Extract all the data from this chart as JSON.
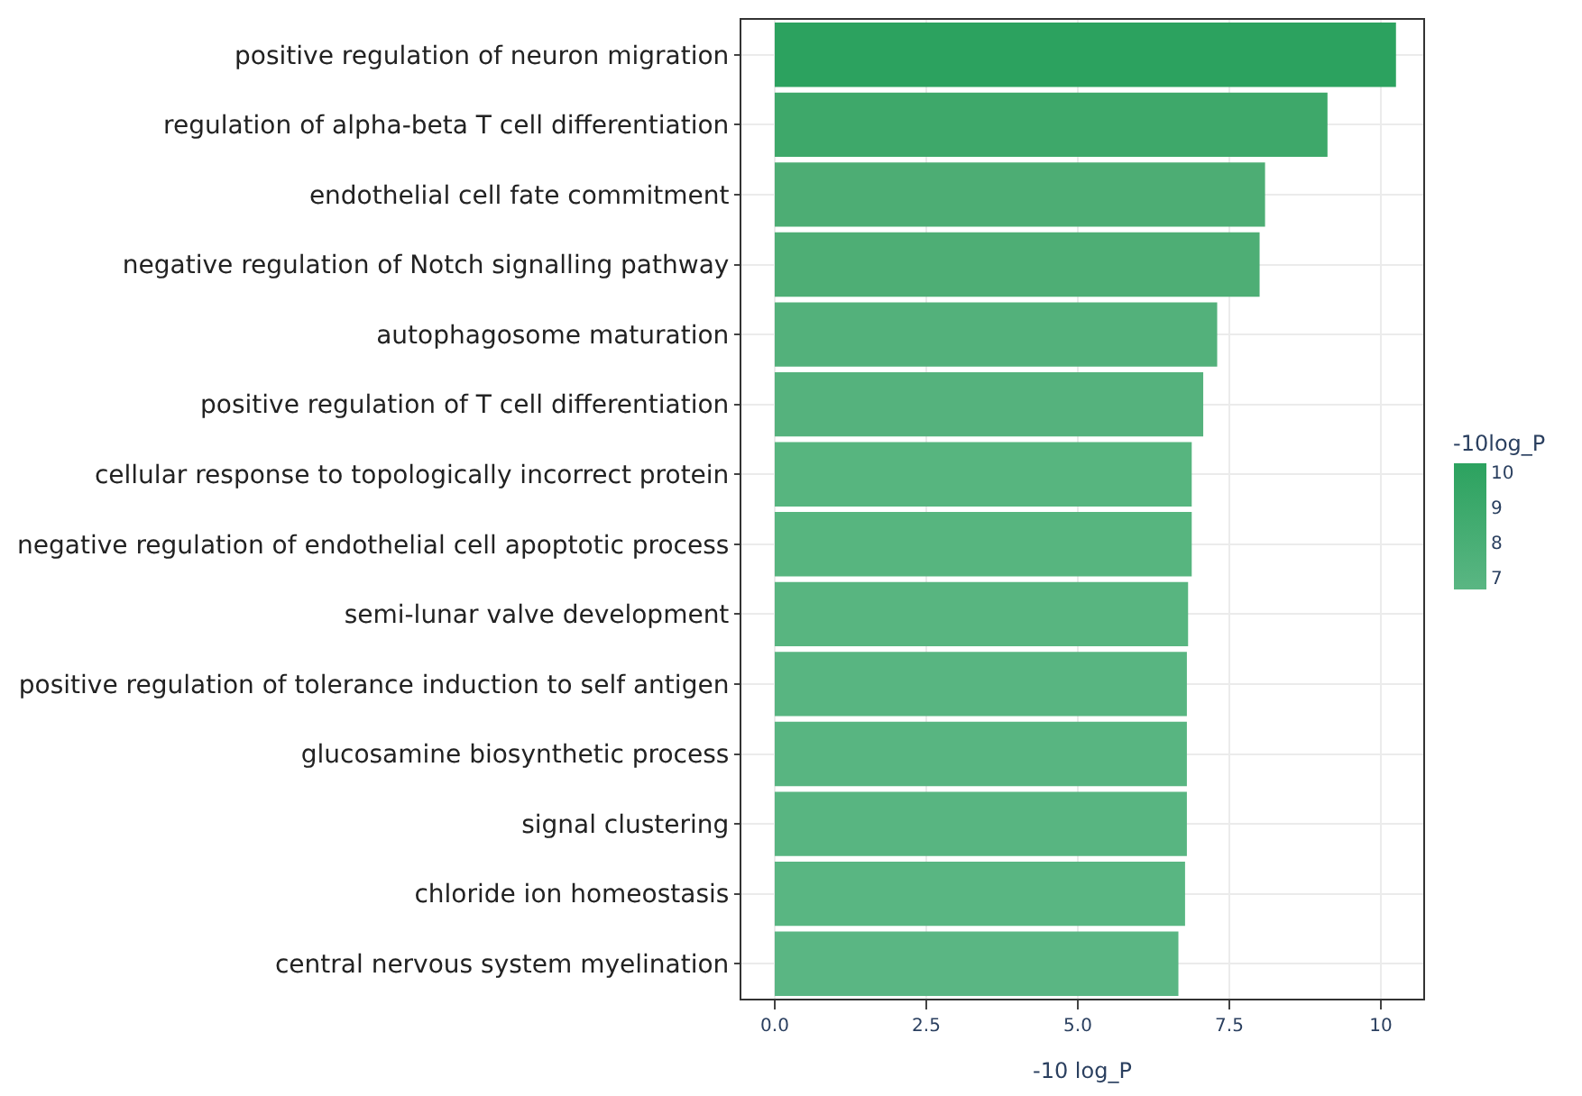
{
  "chart_data": {
    "type": "bar",
    "orientation": "horizontal",
    "xlabel": "-10 log_P",
    "clabel": "-10log_P",
    "categories": [
      "positive regulation of neuron migration",
      "regulation of alpha-beta T cell differentiation",
      "endothelial cell fate commitment",
      "negative regulation of Notch signalling pathway",
      "autophagosome maturation",
      "positive regulation of T cell differentiation",
      "cellular response to topologically incorrect protein",
      "negative regulation of endothelial cell apoptotic process",
      "semi-lunar valve development",
      "positive regulation of tolerance induction to self antigen",
      "glucosamine biosynthetic process",
      "signal clustering",
      "chloride ion homeostasis",
      "central nervous system myelination"
    ],
    "values": [
      10.25,
      9.12,
      8.09,
      8.0,
      7.3,
      7.07,
      6.88,
      6.88,
      6.82,
      6.8,
      6.8,
      6.8,
      6.77,
      6.66
    ],
    "colors": [
      "#2ca25f",
      "#3ea86a",
      "#4dad74",
      "#4eae75",
      "#53b17b",
      "#55b27d",
      "#57b57f",
      "#57b57f",
      "#58b580",
      "#58b581",
      "#58b581",
      "#58b581",
      "#59b682",
      "#5ab683"
    ],
    "clim": [
      6.66,
      10.25
    ],
    "cticks": [
      7,
      8,
      9,
      10
    ],
    "xlim": [
      -0.55,
      10.7
    ],
    "xticks": [
      {
        "value": 0,
        "label": "0.0"
      },
      2.5,
      {
        "value": 5,
        "label": "5.0"
      },
      7.5,
      10
    ],
    "grid": true
  }
}
